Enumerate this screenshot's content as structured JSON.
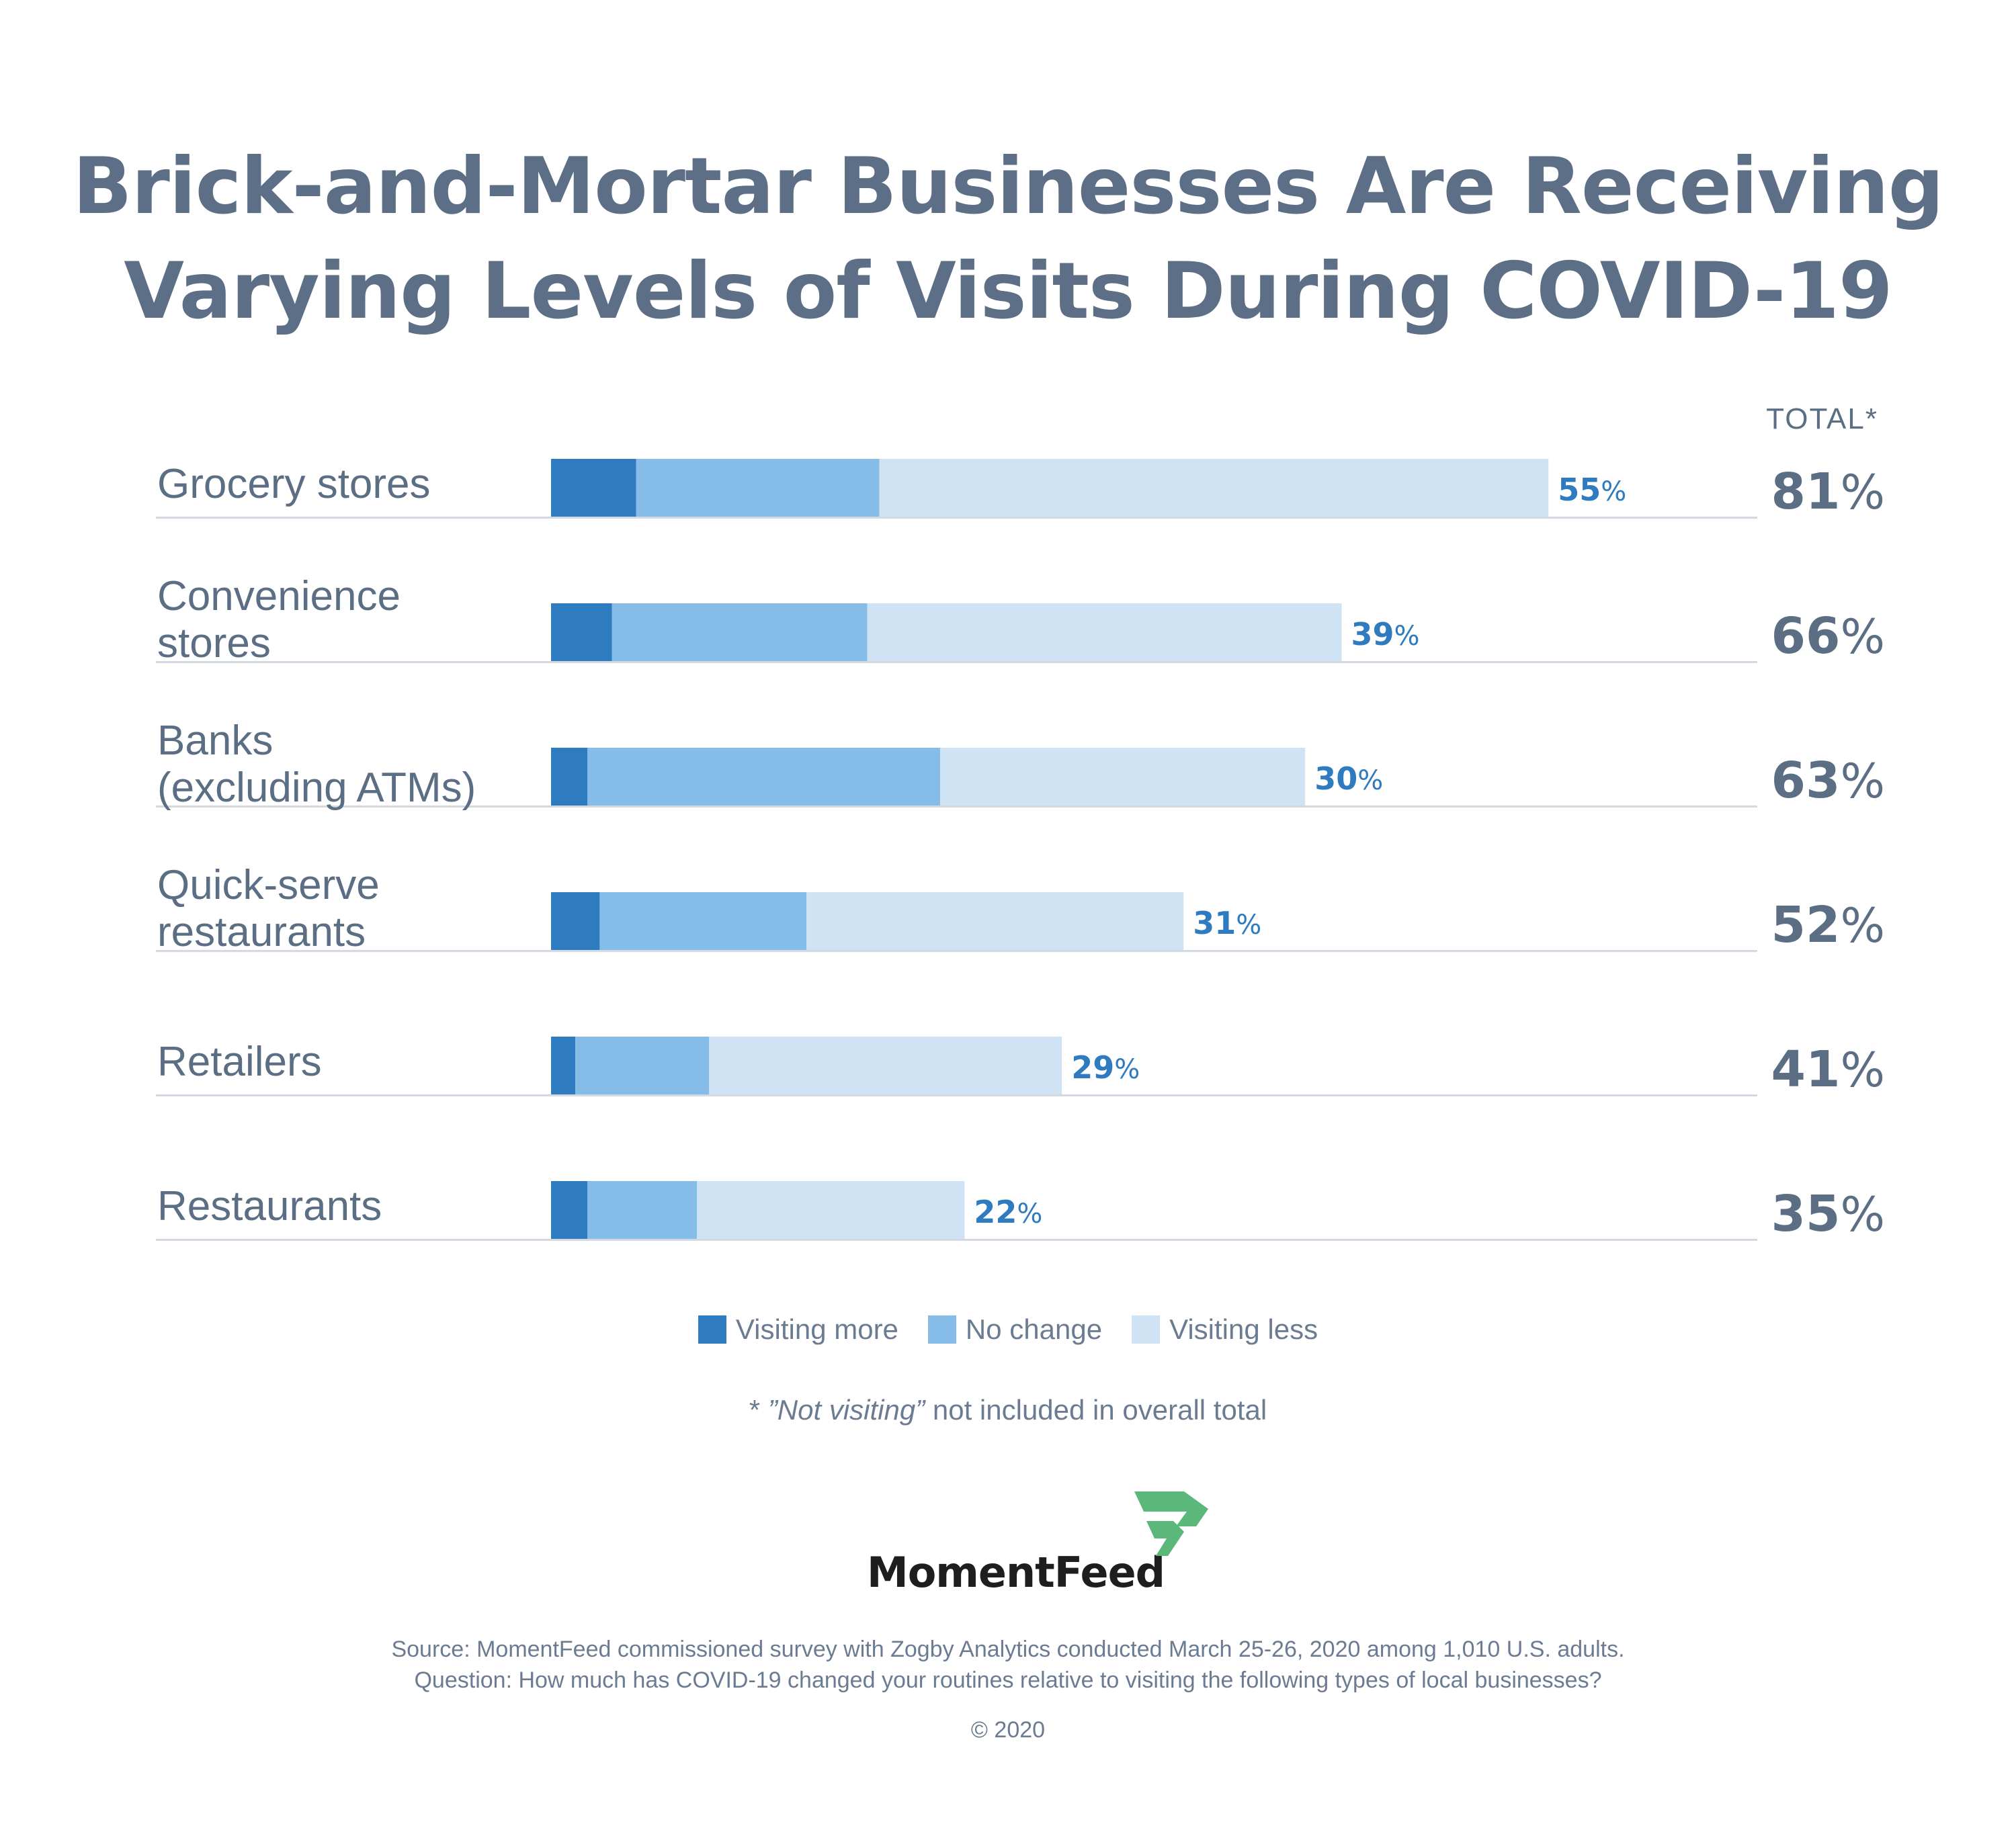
{
  "title_lines": [
    "Brick-and-Mortar Businesses Are Receiving",
    "Varying Levels of Visits During COVID-19"
  ],
  "chart_data": {
    "type": "bar",
    "orientation": "horizontal",
    "stacked": true,
    "title": "Brick-and-Mortar Businesses Are Receiving Varying Levels of Visits During COVID-19",
    "categories": [
      [
        "Grocery stores"
      ],
      [
        "Convenience",
        "stores"
      ],
      [
        "Banks",
        "(excluding ATMs)"
      ],
      [
        "Quick-serve",
        "restaurants"
      ],
      [
        "Retailers"
      ],
      [
        "Restaurants"
      ]
    ],
    "series": [
      {
        "name": "Visiting more",
        "color": "#2f7bbf",
        "values": [
          7,
          5,
          3,
          4,
          2,
          3
        ]
      },
      {
        "name": "No change",
        "color": "#85bde8",
        "values": [
          20,
          21,
          29,
          17,
          11,
          9
        ]
      },
      {
        "name": "Visiting less",
        "color": "#cfe3f5",
        "values": [
          55,
          39,
          30,
          31,
          29,
          22
        ]
      }
    ],
    "value_suffix": "%",
    "totals": [
      81,
      66,
      63,
      52,
      41,
      35
    ],
    "totals_header": "TOTAL*",
    "xlim": [
      0,
      100
    ]
  },
  "legend": [
    {
      "label": "Visiting more",
      "color": "#2f7bbf"
    },
    {
      "label": "No change",
      "color": "#85bde8"
    },
    {
      "label": "Visiting less",
      "color": "#cfe3f5"
    }
  ],
  "footnote": {
    "prefix": "* ",
    "emph": "”Not visiting”",
    "rest": " not included in overall total"
  },
  "logo": {
    "text": "MomentFeed",
    "color": "#5cb87a"
  },
  "source_lines": [
    "Source: MomentFeed commissioned survey with Zogby Analytics conducted March 25-26, 2020 among 1,010 U.S. adults.",
    "Question: How much has COVID-19 changed your routines relative to visiting the following types of local businesses?"
  ],
  "copyright": "© 2020"
}
